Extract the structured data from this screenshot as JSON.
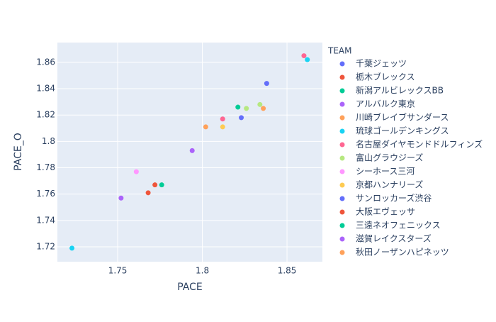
{
  "chart_data": {
    "type": "scatter",
    "x_label": "PACE",
    "y_label": "PACE_O",
    "legend_title": "TEAM",
    "xlim": [
      1.7144,
      1.8709
    ],
    "ylim": [
      1.7087,
      1.875
    ],
    "xticks": [
      1.75,
      1.8,
      1.85
    ],
    "yticks": [
      1.72,
      1.74,
      1.76,
      1.78,
      1.8,
      1.82,
      1.84,
      1.86
    ],
    "grid": true,
    "legend": "right",
    "series": [
      {
        "name": "千葉ジェッツ",
        "color": "#636efa",
        "x": [
          1.838
        ],
        "values": [
          1.844
        ]
      },
      {
        "name": "栃木ブレックス",
        "color": "#EF553B",
        "x": [
          1.772
        ],
        "values": [
          1.767
        ]
      },
      {
        "name": "新潟アルビレックスBB",
        "color": "#00cc96",
        "x": [
          1.821
        ],
        "values": [
          1.826
        ]
      },
      {
        "name": "アルバルク東京",
        "color": "#ab63fa",
        "x": [
          1.794
        ],
        "values": [
          1.793
        ]
      },
      {
        "name": "川崎ブレイブサンダース",
        "color": "#FFA15A",
        "x": [
          1.836
        ],
        "values": [
          1.825
        ]
      },
      {
        "name": "琉球ゴールデンキングス",
        "color": "#19d3f3",
        "x": [
          1.862
        ],
        "values": [
          1.862
        ]
      },
      {
        "name": "名古屋ダイヤモンドドルフィンズ",
        "color": "#FF6692",
        "x": [
          1.86
        ],
        "values": [
          1.865
        ]
      },
      {
        "name": "富山グラウジーズ",
        "color": "#B6E880",
        "x": [
          1.834
        ],
        "values": [
          1.828
        ]
      },
      {
        "name": "シーホース三河",
        "color": "#FF97FF",
        "x": [
          1.761
        ],
        "values": [
          1.777
        ]
      },
      {
        "name": "京都ハンナリーズ",
        "color": "#FECB52",
        "x": [
          1.812
        ],
        "values": [
          1.811
        ]
      },
      {
        "name": "サンロッカーズ渋谷",
        "color": "#636efa",
        "x": [
          1.823
        ],
        "values": [
          1.818
        ]
      },
      {
        "name": "大阪エヴェッサ",
        "color": "#EF553B",
        "x": [
          1.768
        ],
        "values": [
          1.761
        ]
      },
      {
        "name": "三遠ネオフェニックス",
        "color": "#00cc96",
        "x": [
          1.776
        ],
        "values": [
          1.767
        ]
      },
      {
        "name": "滋賀レイクスターズ",
        "color": "#ab63fa",
        "x": [
          1.752
        ],
        "values": [
          1.757
        ]
      },
      {
        "name": "秋田ノーザンハピネッツ",
        "color": "#FFA15A",
        "x": [
          1.802
        ],
        "values": [
          1.811
        ]
      },
      {
        "color": "#19d3f3",
        "x": [
          1.723
        ],
        "values": [
          1.719
        ]
      },
      {
        "color": "#FF6692",
        "x": [
          1.812
        ],
        "values": [
          1.817
        ]
      },
      {
        "color": "#B6E880",
        "x": [
          1.826
        ],
        "values": [
          1.825
        ]
      }
    ]
  }
}
